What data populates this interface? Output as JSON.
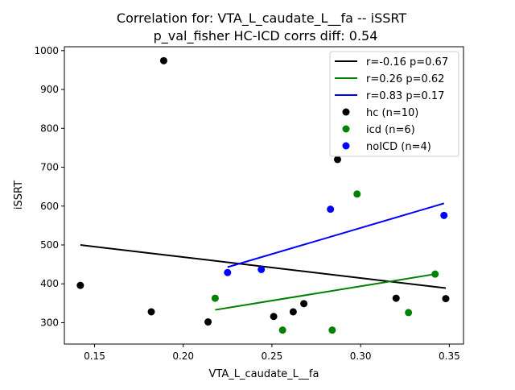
{
  "chart_data": {
    "type": "scatter",
    "title": "Correlation for: VTA_L_caudate_L__fa -- iSSRT",
    "subtitle": "p_val_fisher HC-ICD corrs diff: 0.54",
    "xlabel": "VTA_L_caudate_L__fa",
    "ylabel": "iSSRT",
    "xlim": [
      0.133,
      0.358
    ],
    "ylim": [
      245,
      1010
    ],
    "xticks": [
      0.15,
      0.2,
      0.25,
      0.3,
      0.35
    ],
    "xtick_labels": [
      "0.15",
      "0.20",
      "0.25",
      "0.30",
      "0.35"
    ],
    "yticks": [
      300,
      400,
      500,
      600,
      700,
      800,
      900,
      1000
    ],
    "ytick_labels": [
      "300",
      "400",
      "500",
      "600",
      "700",
      "800",
      "900",
      "1000"
    ],
    "grid": false,
    "legend_position": "top-right",
    "series": [
      {
        "name": "hc (n=10)",
        "color": "#000000",
        "points": [
          {
            "x": 0.142,
            "y": 396
          },
          {
            "x": 0.182,
            "y": 328
          },
          {
            "x": 0.189,
            "y": 974
          },
          {
            "x": 0.214,
            "y": 302
          },
          {
            "x": 0.251,
            "y": 316
          },
          {
            "x": 0.262,
            "y": 328
          },
          {
            "x": 0.268,
            "y": 349
          },
          {
            "x": 0.287,
            "y": 720
          },
          {
            "x": 0.32,
            "y": 363
          },
          {
            "x": 0.348,
            "y": 362
          }
        ]
      },
      {
        "name": "icd (n=6)",
        "color": "#008000",
        "points": [
          {
            "x": 0.218,
            "y": 363
          },
          {
            "x": 0.256,
            "y": 281
          },
          {
            "x": 0.284,
            "y": 281
          },
          {
            "x": 0.298,
            "y": 631
          },
          {
            "x": 0.327,
            "y": 326
          },
          {
            "x": 0.342,
            "y": 425
          }
        ]
      },
      {
        "name": "noICD (n=4)",
        "color": "#0000ff",
        "points": [
          {
            "x": 0.225,
            "y": 429
          },
          {
            "x": 0.244,
            "y": 437
          },
          {
            "x": 0.283,
            "y": 592
          },
          {
            "x": 0.347,
            "y": 576
          }
        ]
      }
    ],
    "fit_lines": [
      {
        "name": "r=-0.16 p=0.67",
        "color": "#000000",
        "x": [
          0.142,
          0.348
        ],
        "y": [
          500,
          389
        ]
      },
      {
        "name": "r=0.26 p=0.62",
        "color": "#008000",
        "x": [
          0.218,
          0.342
        ],
        "y": [
          333,
          425
        ]
      },
      {
        "name": "r=0.83 p=0.17",
        "color": "#0000ff",
        "x": [
          0.225,
          0.347
        ],
        "y": [
          443,
          607
        ]
      }
    ]
  }
}
